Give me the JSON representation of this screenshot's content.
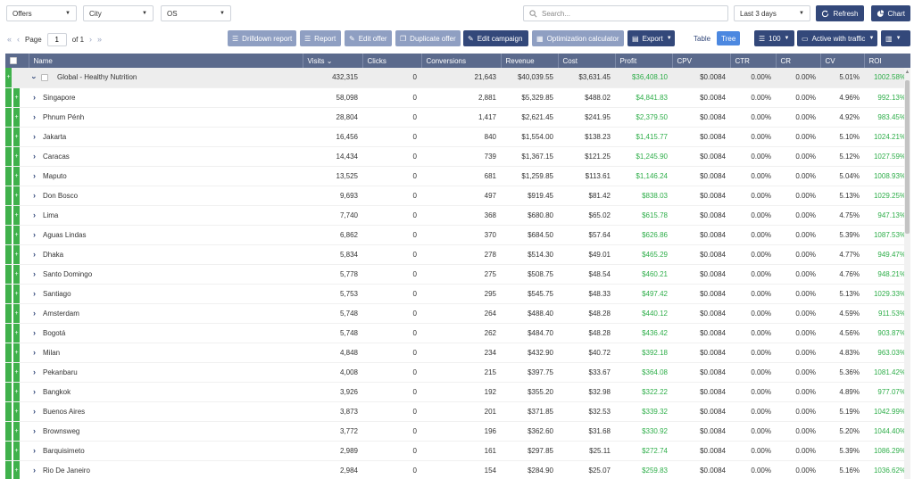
{
  "filters": {
    "group1": "Offers",
    "group2": "City",
    "group3": "OS"
  },
  "search": {
    "placeholder": "Search..."
  },
  "date_range": "Last 3 days",
  "refresh_label": "Refresh",
  "chart_label": "Chart",
  "pager": {
    "page_label": "Page",
    "page_value": "1",
    "of_label": "of 1"
  },
  "toolbar": {
    "drilldown": "Drilldown report",
    "report": "Report",
    "edit_offer": "Edit offer",
    "duplicate_offer": "Duplicate offer",
    "edit_campaign": "Edit campaign",
    "optimization": "Optimization calculator",
    "export": "Export",
    "view_table": "Table",
    "view_tree": "Tree",
    "page_size": "100",
    "traffic_filter": "Active with traffic"
  },
  "columns": [
    "Name",
    "Visits",
    "Clicks",
    "Conversions",
    "Revenue",
    "Cost",
    "Profit",
    "CPV",
    "CTR",
    "CR",
    "CV",
    "ROI"
  ],
  "visits_sort_indicator": "⌄",
  "parent": {
    "name": "Global - Healthy Nutrition",
    "visits": "432,315",
    "clicks": "0",
    "conversions": "21,643",
    "revenue": "$40,039.55",
    "cost": "$3,631.45",
    "profit": "$36,408.10",
    "cpv": "$0.0084",
    "ctr": "0.00%",
    "cr": "0.00%",
    "cv": "5.01%",
    "roi": "1002.58%"
  },
  "rows": [
    {
      "name": "Singapore",
      "visits": "58,098",
      "clicks": "0",
      "conversions": "2,881",
      "revenue": "$5,329.85",
      "cost": "$488.02",
      "profit": "$4,841.83",
      "cpv": "$0.0084",
      "ctr": "0.00%",
      "cr": "0.00%",
      "cv": "4.96%",
      "roi": "992.13%"
    },
    {
      "name": "Phnum Pénh",
      "visits": "28,804",
      "clicks": "0",
      "conversions": "1,417",
      "revenue": "$2,621.45",
      "cost": "$241.95",
      "profit": "$2,379.50",
      "cpv": "$0.0084",
      "ctr": "0.00%",
      "cr": "0.00%",
      "cv": "4.92%",
      "roi": "983.45%"
    },
    {
      "name": "Jakarta",
      "visits": "16,456",
      "clicks": "0",
      "conversions": "840",
      "revenue": "$1,554.00",
      "cost": "$138.23",
      "profit": "$1,415.77",
      "cpv": "$0.0084",
      "ctr": "0.00%",
      "cr": "0.00%",
      "cv": "5.10%",
      "roi": "1024.21%"
    },
    {
      "name": "Caracas",
      "visits": "14,434",
      "clicks": "0",
      "conversions": "739",
      "revenue": "$1,367.15",
      "cost": "$121.25",
      "profit": "$1,245.90",
      "cpv": "$0.0084",
      "ctr": "0.00%",
      "cr": "0.00%",
      "cv": "5.12%",
      "roi": "1027.59%"
    },
    {
      "name": "Maputo",
      "visits": "13,525",
      "clicks": "0",
      "conversions": "681",
      "revenue": "$1,259.85",
      "cost": "$113.61",
      "profit": "$1,146.24",
      "cpv": "$0.0084",
      "ctr": "0.00%",
      "cr": "0.00%",
      "cv": "5.04%",
      "roi": "1008.93%"
    },
    {
      "name": "Don Bosco",
      "visits": "9,693",
      "clicks": "0",
      "conversions": "497",
      "revenue": "$919.45",
      "cost": "$81.42",
      "profit": "$838.03",
      "cpv": "$0.0084",
      "ctr": "0.00%",
      "cr": "0.00%",
      "cv": "5.13%",
      "roi": "1029.25%"
    },
    {
      "name": "Lima",
      "visits": "7,740",
      "clicks": "0",
      "conversions": "368",
      "revenue": "$680.80",
      "cost": "$65.02",
      "profit": "$615.78",
      "cpv": "$0.0084",
      "ctr": "0.00%",
      "cr": "0.00%",
      "cv": "4.75%",
      "roi": "947.13%"
    },
    {
      "name": "Aguas Lindas",
      "visits": "6,862",
      "clicks": "0",
      "conversions": "370",
      "revenue": "$684.50",
      "cost": "$57.64",
      "profit": "$626.86",
      "cpv": "$0.0084",
      "ctr": "0.00%",
      "cr": "0.00%",
      "cv": "5.39%",
      "roi": "1087.53%"
    },
    {
      "name": "Dhaka",
      "visits": "5,834",
      "clicks": "0",
      "conversions": "278",
      "revenue": "$514.30",
      "cost": "$49.01",
      "profit": "$465.29",
      "cpv": "$0.0084",
      "ctr": "0.00%",
      "cr": "0.00%",
      "cv": "4.77%",
      "roi": "949.47%"
    },
    {
      "name": "Santo Domingo",
      "visits": "5,778",
      "clicks": "0",
      "conversions": "275",
      "revenue": "$508.75",
      "cost": "$48.54",
      "profit": "$460.21",
      "cpv": "$0.0084",
      "ctr": "0.00%",
      "cr": "0.00%",
      "cv": "4.76%",
      "roi": "948.21%"
    },
    {
      "name": "Santiago",
      "visits": "5,753",
      "clicks": "0",
      "conversions": "295",
      "revenue": "$545.75",
      "cost": "$48.33",
      "profit": "$497.42",
      "cpv": "$0.0084",
      "ctr": "0.00%",
      "cr": "0.00%",
      "cv": "5.13%",
      "roi": "1029.33%"
    },
    {
      "name": "Amsterdam",
      "visits": "5,748",
      "clicks": "0",
      "conversions": "264",
      "revenue": "$488.40",
      "cost": "$48.28",
      "profit": "$440.12",
      "cpv": "$0.0084",
      "ctr": "0.00%",
      "cr": "0.00%",
      "cv": "4.59%",
      "roi": "911.53%"
    },
    {
      "name": "Bogotá",
      "visits": "5,748",
      "clicks": "0",
      "conversions": "262",
      "revenue": "$484.70",
      "cost": "$48.28",
      "profit": "$436.42",
      "cpv": "$0.0084",
      "ctr": "0.00%",
      "cr": "0.00%",
      "cv": "4.56%",
      "roi": "903.87%"
    },
    {
      "name": "Milan",
      "visits": "4,848",
      "clicks": "0",
      "conversions": "234",
      "revenue": "$432.90",
      "cost": "$40.72",
      "profit": "$392.18",
      "cpv": "$0.0084",
      "ctr": "0.00%",
      "cr": "0.00%",
      "cv": "4.83%",
      "roi": "963.03%"
    },
    {
      "name": "Pekanbaru",
      "visits": "4,008",
      "clicks": "0",
      "conversions": "215",
      "revenue": "$397.75",
      "cost": "$33.67",
      "profit": "$364.08",
      "cpv": "$0.0084",
      "ctr": "0.00%",
      "cr": "0.00%",
      "cv": "5.36%",
      "roi": "1081.42%"
    },
    {
      "name": "Bangkok",
      "visits": "3,926",
      "clicks": "0",
      "conversions": "192",
      "revenue": "$355.20",
      "cost": "$32.98",
      "profit": "$322.22",
      "cpv": "$0.0084",
      "ctr": "0.00%",
      "cr": "0.00%",
      "cv": "4.89%",
      "roi": "977.07%"
    },
    {
      "name": "Buenos Aires",
      "visits": "3,873",
      "clicks": "0",
      "conversions": "201",
      "revenue": "$371.85",
      "cost": "$32.53",
      "profit": "$339.32",
      "cpv": "$0.0084",
      "ctr": "0.00%",
      "cr": "0.00%",
      "cv": "5.19%",
      "roi": "1042.99%"
    },
    {
      "name": "Brownsweg",
      "visits": "3,772",
      "clicks": "0",
      "conversions": "196",
      "revenue": "$362.60",
      "cost": "$31.68",
      "profit": "$330.92",
      "cpv": "$0.0084",
      "ctr": "0.00%",
      "cr": "0.00%",
      "cv": "5.20%",
      "roi": "1044.40%"
    },
    {
      "name": "Barquisimeto",
      "visits": "2,989",
      "clicks": "0",
      "conversions": "161",
      "revenue": "$297.85",
      "cost": "$25.11",
      "profit": "$272.74",
      "cpv": "$0.0084",
      "ctr": "0.00%",
      "cr": "0.00%",
      "cv": "5.39%",
      "roi": "1086.29%"
    },
    {
      "name": "Rio De Janeiro",
      "visits": "2,984",
      "clicks": "0",
      "conversions": "154",
      "revenue": "$284.90",
      "cost": "$25.07",
      "profit": "$259.83",
      "cpv": "$0.0084",
      "ctr": "0.00%",
      "cr": "0.00%",
      "cv": "5.16%",
      "roi": "1036.62%"
    }
  ],
  "icons": {
    "search": "search-icon",
    "refresh": "refresh-icon",
    "chart": "chart-icon",
    "expand_plus": "+",
    "chevron": "›"
  },
  "colors": {
    "navy": "#33487a",
    "muted_button": "#8f9fc2",
    "header_row": "#5b6a8c",
    "profit_green": "#2fae4a",
    "plus_green": "#3fb14b",
    "tree_active": "#4c88e0"
  }
}
